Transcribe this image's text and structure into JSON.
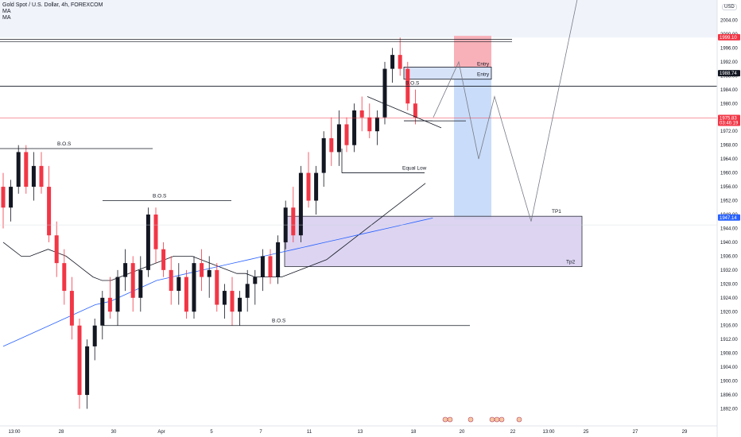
{
  "header": {
    "symbol_title": "Gold Spot / U.S. Dollar, 4h, FOREXCOM",
    "indicators": [
      "MA",
      "MA"
    ],
    "currency": "USD"
  },
  "colors": {
    "up": "#131722",
    "down": "#f23645",
    "ma_fast": "#131722",
    "ma_slow": "#2962ff",
    "stop_zone": "#f7a8b0",
    "target_zone": "#bcd3f7",
    "demand_zone": "#d9d0f0",
    "demand_border": "#131722"
  },
  "chart_data": {
    "type": "candlestick",
    "title": "",
    "x_ticks": [
      "13:00",
      "28",
      "30",
      "Apr",
      "5",
      "7",
      "11",
      "13",
      "18",
      "20",
      "22",
      "13:00",
      "25",
      "27",
      "29"
    ],
    "y_ticks": [
      1892,
      1896,
      1900,
      1904,
      1908,
      1912,
      1916,
      1920,
      1924,
      1928,
      1932,
      1936,
      1940,
      1944,
      1948,
      1952,
      1956,
      1960,
      1964,
      1968,
      1972,
      1976,
      1980,
      1984,
      1988,
      1992,
      1996,
      2000,
      2004
    ],
    "ylim": [
      1888,
      2008
    ],
    "price_labels": [
      {
        "value": 1999.1,
        "text": "1999.10",
        "color": "#f23645"
      },
      {
        "value": 1988.74,
        "text": "1988.74",
        "color": "#131722"
      },
      {
        "value": 1975.83,
        "text": "1975.83",
        "sub": "03:46:19",
        "color": "#f23645"
      },
      {
        "value": 1947.14,
        "text": "1947.14",
        "color": "#2962ff"
      }
    ],
    "annotations": [
      {
        "text": "B.O.S",
        "price": 1967.5
      },
      {
        "text": "B.O.S",
        "price": 1952.5
      },
      {
        "text": "B.O.S",
        "price": 1916.5
      },
      {
        "text": "Equal Low",
        "price": 1960.5
      },
      {
        "text": "Entry",
        "price": 1990.5
      },
      {
        "text": "Entry",
        "price": 1987.5
      },
      {
        "text": "TP1",
        "price": 1948.0
      },
      {
        "text": "Tp2",
        "price": 1933.5
      },
      {
        "text": "B.O.S",
        "price": 1985.0
      }
    ],
    "candles": [
      [
        1956,
        1960,
        1944,
        1950
      ],
      [
        1950,
        1958,
        1946,
        1956
      ],
      [
        1956,
        1968,
        1954,
        1966
      ],
      [
        1966,
        1968,
        1954,
        1956
      ],
      [
        1956,
        1966,
        1952,
        1962
      ],
      [
        1962,
        1966,
        1954,
        1956
      ],
      [
        1956,
        1962,
        1940,
        1942
      ],
      [
        1942,
        1946,
        1930,
        1934
      ],
      [
        1934,
        1938,
        1922,
        1926
      ],
      [
        1926,
        1930,
        1912,
        1916
      ],
      [
        1916,
        1918,
        1892,
        1896
      ],
      [
        1896,
        1912,
        1892,
        1910
      ],
      [
        1910,
        1918,
        1906,
        1916
      ],
      [
        1916,
        1926,
        1912,
        1924
      ],
      [
        1924,
        1930,
        1918,
        1920
      ],
      [
        1920,
        1932,
        1916,
        1930
      ],
      [
        1930,
        1938,
        1926,
        1934
      ],
      [
        1934,
        1936,
        1920,
        1924
      ],
      [
        1924,
        1936,
        1920,
        1932
      ],
      [
        1932,
        1950,
        1930,
        1948
      ],
      [
        1948,
        1950,
        1934,
        1938
      ],
      [
        1938,
        1940,
        1930,
        1932
      ],
      [
        1932,
        1936,
        1922,
        1926
      ],
      [
        1926,
        1934,
        1922,
        1930
      ],
      [
        1930,
        1932,
        1918,
        1920
      ],
      [
        1920,
        1936,
        1918,
        1934
      ],
      [
        1934,
        1938,
        1926,
        1930
      ],
      [
        1930,
        1936,
        1924,
        1932
      ],
      [
        1932,
        1934,
        1920,
        1922
      ],
      [
        1922,
        1928,
        1918,
        1926
      ],
      [
        1926,
        1930,
        1916,
        1920
      ],
      [
        1920,
        1926,
        1916,
        1924
      ],
      [
        1924,
        1932,
        1920,
        1928
      ],
      [
        1928,
        1932,
        1922,
        1930
      ],
      [
        1930,
        1938,
        1926,
        1936
      ],
      [
        1936,
        1938,
        1928,
        1930
      ],
      [
        1930,
        1942,
        1928,
        1940
      ],
      [
        1940,
        1952,
        1938,
        1950
      ],
      [
        1950,
        1956,
        1940,
        1942
      ],
      [
        1942,
        1962,
        1940,
        1960
      ],
      [
        1960,
        1966,
        1950,
        1952
      ],
      [
        1952,
        1962,
        1948,
        1960
      ],
      [
        1960,
        1972,
        1956,
        1970
      ],
      [
        1970,
        1976,
        1962,
        1966
      ],
      [
        1966,
        1978,
        1962,
        1974
      ],
      [
        1974,
        1976,
        1966,
        1968
      ],
      [
        1968,
        1980,
        1966,
        1978
      ],
      [
        1978,
        1982,
        1972,
        1976
      ],
      [
        1976,
        1980,
        1970,
        1972
      ],
      [
        1972,
        1978,
        1968,
        1976
      ],
      [
        1976,
        1992,
        1974,
        1990
      ],
      [
        1990,
        1996,
        1986,
        1994
      ],
      [
        1994,
        1999,
        1988,
        1990
      ],
      [
        1990,
        1992,
        1978,
        1980
      ],
      [
        1980,
        1984,
        1974,
        1976
      ]
    ],
    "trade_plan_path": [
      [
        1976,
        0
      ],
      [
        1992,
        1
      ],
      [
        1980,
        2
      ],
      [
        1964,
        3
      ],
      [
        1982,
        4
      ],
      [
        1946,
        5
      ],
      [
        2010,
        6
      ]
    ]
  }
}
